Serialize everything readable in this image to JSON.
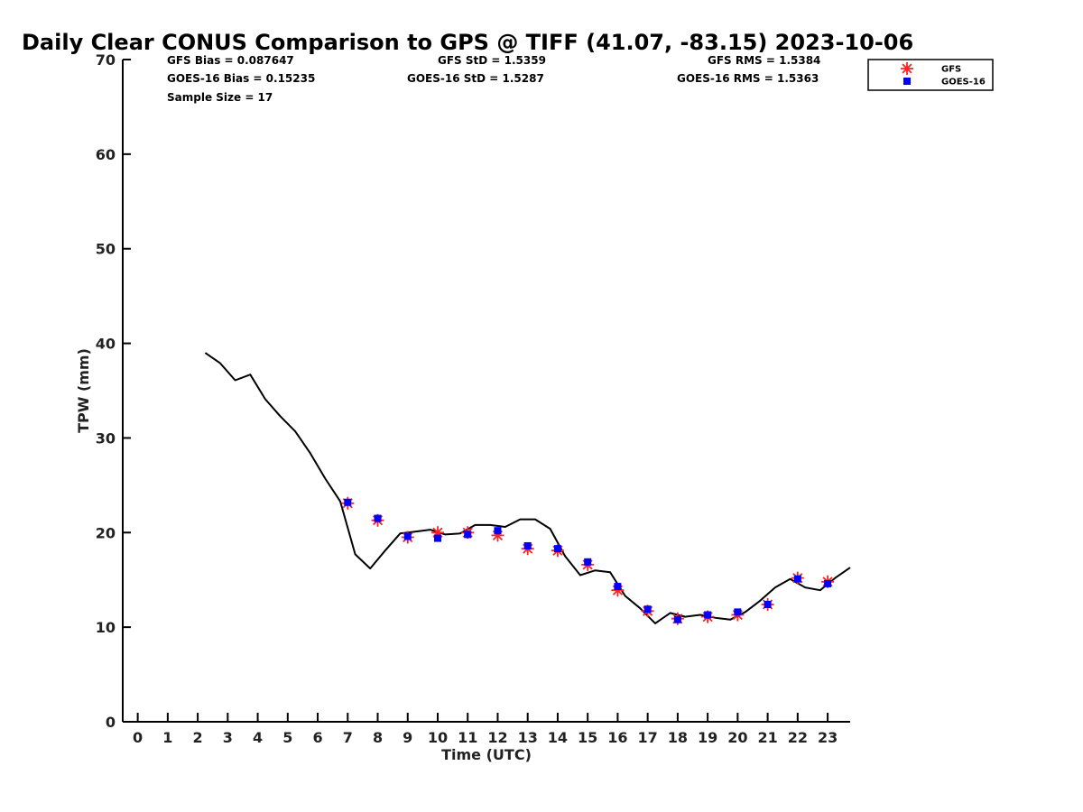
{
  "chart_data": {
    "type": "line",
    "title": "Daily Clear CONUS Comparison to GPS @ TIFF (41.07, -83.15) 2023-10-06",
    "xlabel": "Time (UTC)",
    "ylabel": "TPW (mm)",
    "xlim": [
      -0.5,
      23.75
    ],
    "ylim": [
      0,
      70
    ],
    "xticks": [
      "0",
      "1",
      "2",
      "3",
      "4",
      "5",
      "6",
      "7",
      "8",
      "9",
      "10",
      "11",
      "12",
      "13",
      "14",
      "15",
      "16",
      "17",
      "18",
      "19",
      "20",
      "21",
      "22",
      "23"
    ],
    "yticks": [
      "0",
      "10",
      "20",
      "30",
      "40",
      "50",
      "60",
      "70"
    ],
    "grid": false,
    "legend_position": "top-right",
    "stats": {
      "gfs_bias": "GFS Bias = 0.087647",
      "gfs_std": "GFS StD = 1.5359",
      "gfs_rms": "GFS RMS = 1.5384",
      "goes_bias": "GOES-16 Bias = 0.15235",
      "goes_std": "GOES-16 StD = 1.5287",
      "goes_rms": "GOES-16 RMS = 1.5363",
      "sample_size": "Sample Size = 17"
    },
    "series": [
      {
        "kind": "line",
        "color": "#000000",
        "x": [
          2.25,
          2.75,
          3.25,
          3.75,
          4.25,
          4.75,
          5.25,
          5.75,
          6.25,
          6.75,
          7.25,
          7.75,
          8.25,
          8.75,
          9.25,
          9.75,
          10.25,
          10.75,
          11.25,
          11.75,
          12.25,
          12.75,
          13.25,
          13.75,
          14.25,
          14.75,
          15.25,
          15.75,
          16.25,
          16.75,
          17.25,
          17.75,
          18.25,
          18.75,
          19.25,
          19.75,
          20.25,
          20.75,
          21.25,
          21.75,
          22.25,
          22.75,
          23.25,
          23.75
        ],
        "y": [
          39.0,
          37.9,
          36.1,
          36.7,
          34.1,
          32.3,
          30.7,
          28.4,
          25.7,
          23.3,
          17.7,
          16.2,
          18.1,
          19.9,
          20.1,
          20.3,
          19.8,
          19.9,
          20.8,
          20.8,
          20.6,
          21.4,
          21.4,
          20.4,
          17.5,
          15.5,
          16.0,
          15.8,
          13.3,
          12.0,
          10.4,
          11.5,
          11.1,
          11.3,
          11.0,
          10.8,
          11.6,
          12.8,
          14.2,
          15.1,
          14.2,
          13.9,
          15.2,
          16.3
        ]
      },
      {
        "name": "GFS",
        "kind": "star",
        "color": "#ff2020",
        "x": [
          7,
          8,
          9,
          10,
          11,
          12,
          13,
          14,
          15,
          16,
          17,
          18,
          19,
          20,
          21,
          22,
          23
        ],
        "y": [
          23.1,
          21.3,
          19.5,
          20.0,
          20.0,
          19.7,
          18.3,
          18.1,
          16.6,
          13.9,
          11.7,
          10.9,
          11.1,
          11.3,
          12.4,
          15.2,
          14.8
        ]
      },
      {
        "name": "GOES-16",
        "kind": "square",
        "color": "#0000ff",
        "x": [
          7,
          8,
          9,
          10,
          11,
          12,
          13,
          14,
          15,
          16,
          17,
          18,
          19,
          20,
          21,
          22,
          23
        ],
        "y": [
          23.2,
          21.5,
          19.6,
          19.4,
          19.8,
          20.2,
          18.6,
          18.3,
          16.9,
          14.3,
          11.9,
          10.8,
          11.3,
          11.6,
          12.4,
          15.1,
          14.6
        ]
      }
    ]
  }
}
